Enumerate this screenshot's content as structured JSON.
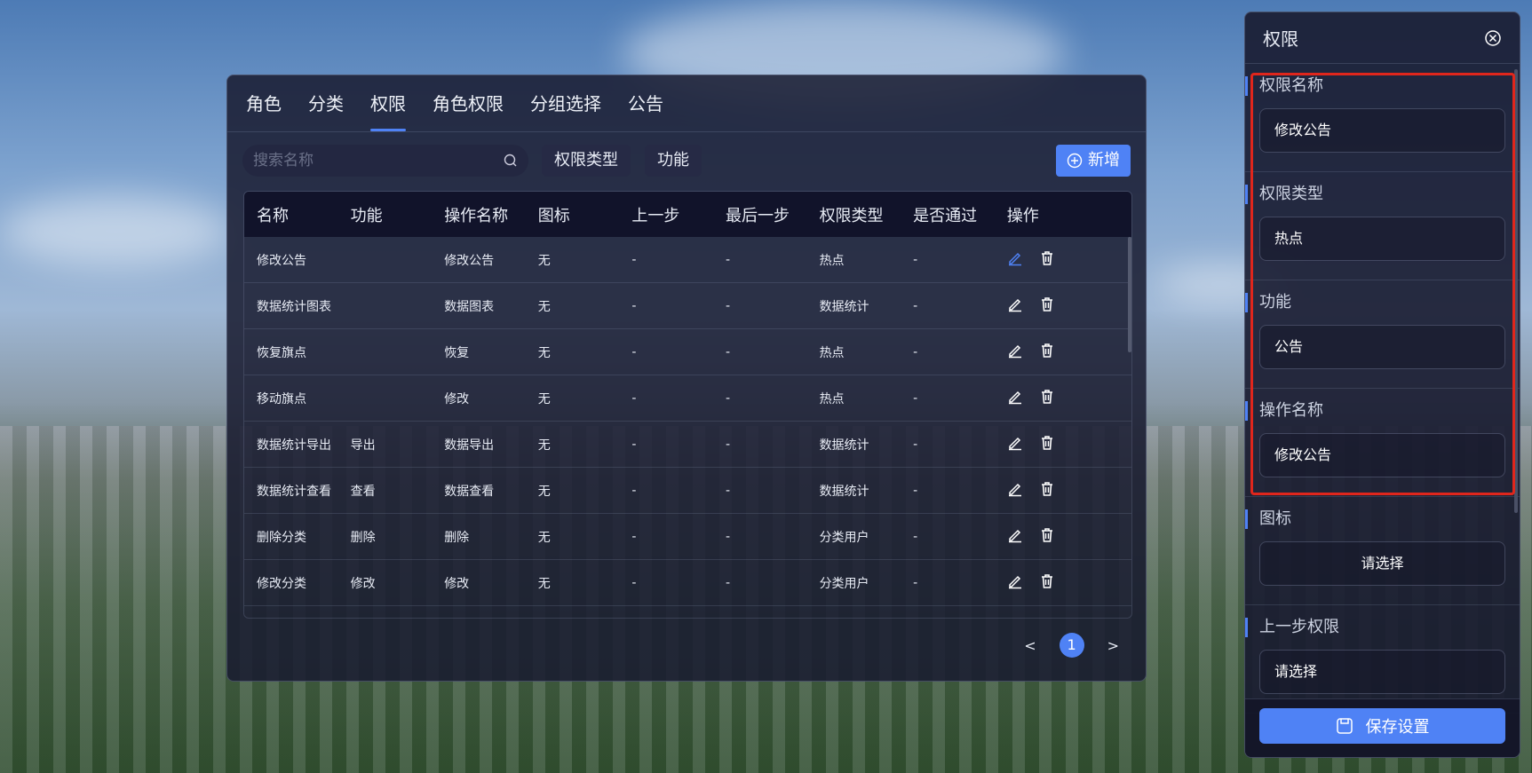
{
  "tabs": [
    {
      "label": "角色"
    },
    {
      "label": "分类"
    },
    {
      "label": "权限",
      "active": true
    },
    {
      "label": "角色权限"
    },
    {
      "label": "分组选择"
    },
    {
      "label": "公告"
    }
  ],
  "toolbar": {
    "search_placeholder": "搜索名称",
    "filter_type": "权限类型",
    "filter_function": "功能",
    "add_label": "新增"
  },
  "table": {
    "headers": [
      "名称",
      "功能",
      "操作名称",
      "图标",
      "上一步",
      "最后一步",
      "权限类型",
      "是否通过",
      "操作"
    ],
    "rows": [
      [
        "修改公告",
        "",
        "修改公告",
        "无",
        "-",
        "-",
        "热点",
        "-"
      ],
      [
        "数据统计图表",
        "",
        "数据图表",
        "无",
        "-",
        "-",
        "数据统计",
        "-"
      ],
      [
        "恢复旗点",
        "",
        "恢复",
        "无",
        "-",
        "-",
        "热点",
        "-"
      ],
      [
        "移动旗点",
        "",
        "修改",
        "无",
        "-",
        "-",
        "热点",
        "-"
      ],
      [
        "数据统计导出",
        "导出",
        "数据导出",
        "无",
        "-",
        "-",
        "数据统计",
        "-"
      ],
      [
        "数据统计查看",
        "查看",
        "数据查看",
        "无",
        "-",
        "-",
        "数据统计",
        "-"
      ],
      [
        "删除分类",
        "删除",
        "删除",
        "无",
        "-",
        "-",
        "分类用户",
        "-"
      ],
      [
        "修改分类",
        "修改",
        "修改",
        "无",
        "-",
        "-",
        "分类用户",
        "-"
      ]
    ]
  },
  "pagination": {
    "prev": "<",
    "current": "1",
    "next": ">"
  },
  "side": {
    "title": "权限",
    "fields": [
      {
        "label": "权限名称",
        "value": "修改公告"
      },
      {
        "label": "权限类型",
        "value": "热点"
      },
      {
        "label": "功能",
        "value": "公告"
      },
      {
        "label": "操作名称",
        "value": "修改公告"
      },
      {
        "label": "图标",
        "value": "请选择"
      },
      {
        "label": "上一步权限",
        "value": "请选择"
      }
    ],
    "save_label": "保存设置"
  },
  "colors": {
    "accent": "#4f82f5",
    "highlight": "#e0261c"
  }
}
